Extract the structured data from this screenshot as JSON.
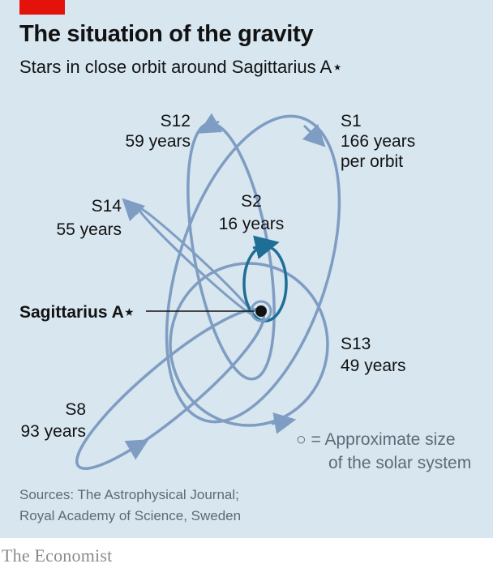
{
  "header": {
    "title": "The situation of the gravity",
    "subtitle": "Stars in close orbit around Sagittarius A⋆"
  },
  "center": {
    "label": "Sagittarius A⋆"
  },
  "orbits": [
    {
      "name": "S12",
      "period": "59 years"
    },
    {
      "name": "S1",
      "period_line1": "166 years",
      "period_line2": "per orbit"
    },
    {
      "name": "S14",
      "period": "55 years"
    },
    {
      "name": "S2",
      "period": "16 years"
    },
    {
      "name": "S13",
      "period": "49 years"
    },
    {
      "name": "S8",
      "period": "93 years"
    }
  ],
  "key": {
    "line1": "○ = Approximate size",
    "line2": "of the solar system"
  },
  "sources": {
    "line1": "Sources: The Astrophysical Journal;",
    "line2": "Royal Academy of Science, Sweden"
  },
  "brand": "The Economist",
  "colors": {
    "background": "#d7e6ef",
    "orbit": "#7f9dc2",
    "s2_orbit": "#1f6e96",
    "accent_red": "#e3120b"
  }
}
